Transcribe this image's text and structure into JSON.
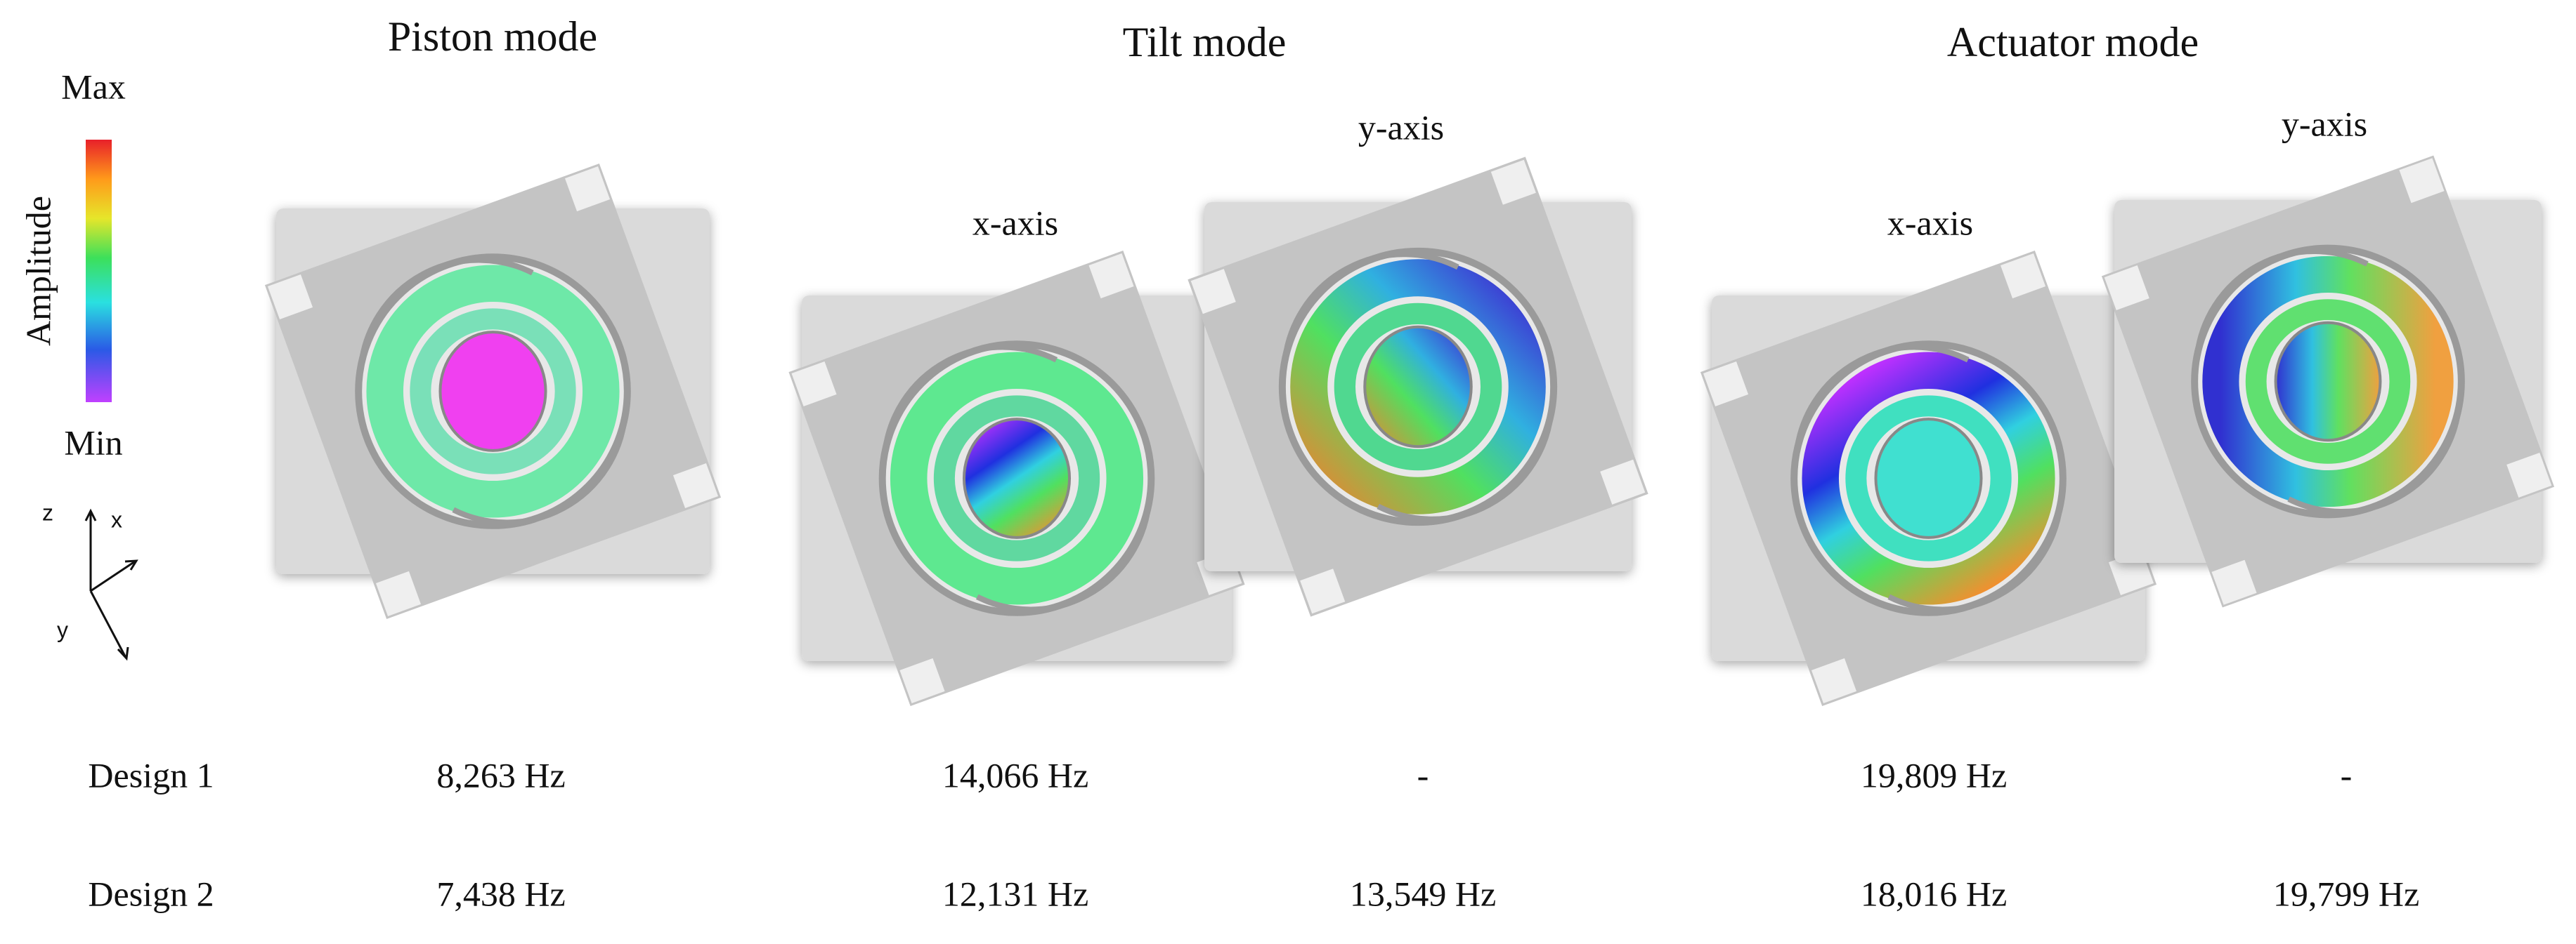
{
  "figure": {
    "modes": [
      "Piston mode",
      "Tilt mode",
      "Actuator mode"
    ],
    "subtitles": {
      "tilt_x": "x-axis",
      "tilt_y": "y-axis",
      "actuator_x": "x-axis",
      "actuator_y": "y-axis"
    },
    "legend": {
      "max": "Max",
      "min": "Min",
      "label": "Amplitude"
    },
    "axes": {
      "z": "z",
      "x": "x",
      "y": "y"
    },
    "table": {
      "rows": [
        [
          "Design 1",
          "8,263 Hz",
          "14,066 Hz",
          "-",
          "19,809 Hz",
          "-"
        ],
        [
          "Design 2",
          "7,438 Hz",
          "12,131 Hz",
          "13,549 Hz",
          "18,016 Hz",
          "19,799 Hz"
        ]
      ]
    }
  }
}
